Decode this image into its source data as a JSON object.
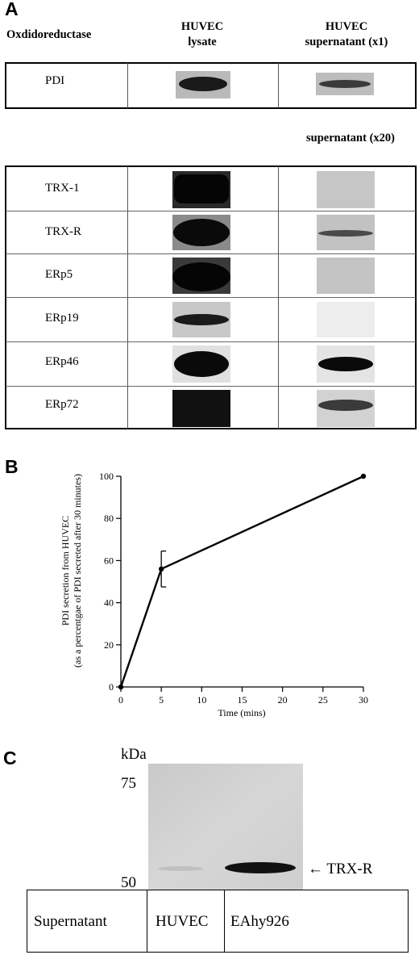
{
  "panel_a": {
    "letter": "A",
    "col_header_label": "Oxdidoreductase",
    "col_header_lysate": [
      "HUVEC",
      "lysate"
    ],
    "col_header_sup1": [
      "HUVEC",
      "supernatant (x1)"
    ],
    "pdi_row": "PDI",
    "sup20_header": "supernatant (x20)",
    "rows": [
      "TRX-1",
      "TRX-R",
      "ERp5",
      "ERp19",
      "ERp46",
      "ERp72"
    ]
  },
  "panel_b": {
    "letter": "B",
    "ylabel_line1": "PDI secretion from HUVEC",
    "ylabel_line2": "(as a percentgae of PDI secreted after 30 minutes)",
    "xlabel": "Time (mins)"
  },
  "chart_data": {
    "type": "line",
    "x": [
      0,
      5,
      30
    ],
    "y": [
      0,
      56,
      100
    ],
    "error": [
      0,
      8.5,
      0
    ],
    "xlim": [
      0,
      30
    ],
    "ylim": [
      0,
      100
    ],
    "xticks": [
      0,
      5,
      10,
      15,
      20,
      25,
      30
    ],
    "yticks": [
      0,
      20,
      40,
      60,
      80,
      100
    ],
    "xlabel": "Time (mins)",
    "ylabel": "PDI secretion from HUVEC (as a percentgae of PDI secreted after 30 minutes)",
    "grid": false
  },
  "panel_c": {
    "letter": "C",
    "kda": "kDa",
    "marker_75": "75",
    "marker_50": "50",
    "band_label": "← TRX-R",
    "table": [
      "Supernatant",
      "HUVEC",
      "EAhy926"
    ]
  }
}
